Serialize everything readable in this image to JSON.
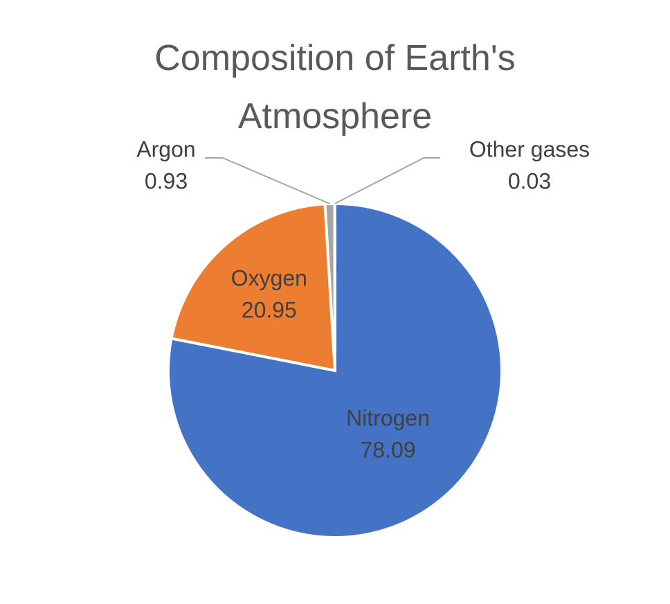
{
  "chart_data": {
    "type": "pie",
    "title": "Composition of Earth's Atmosphere",
    "categories": [
      "Nitrogen",
      "Oxygen",
      "Argon",
      "Other gases"
    ],
    "values": [
      78.09,
      20.95,
      0.93,
      0.03
    ],
    "colors": [
      "#4472c4",
      "#ed7d31",
      "#a5a5a5",
      "#ffc000"
    ]
  }
}
